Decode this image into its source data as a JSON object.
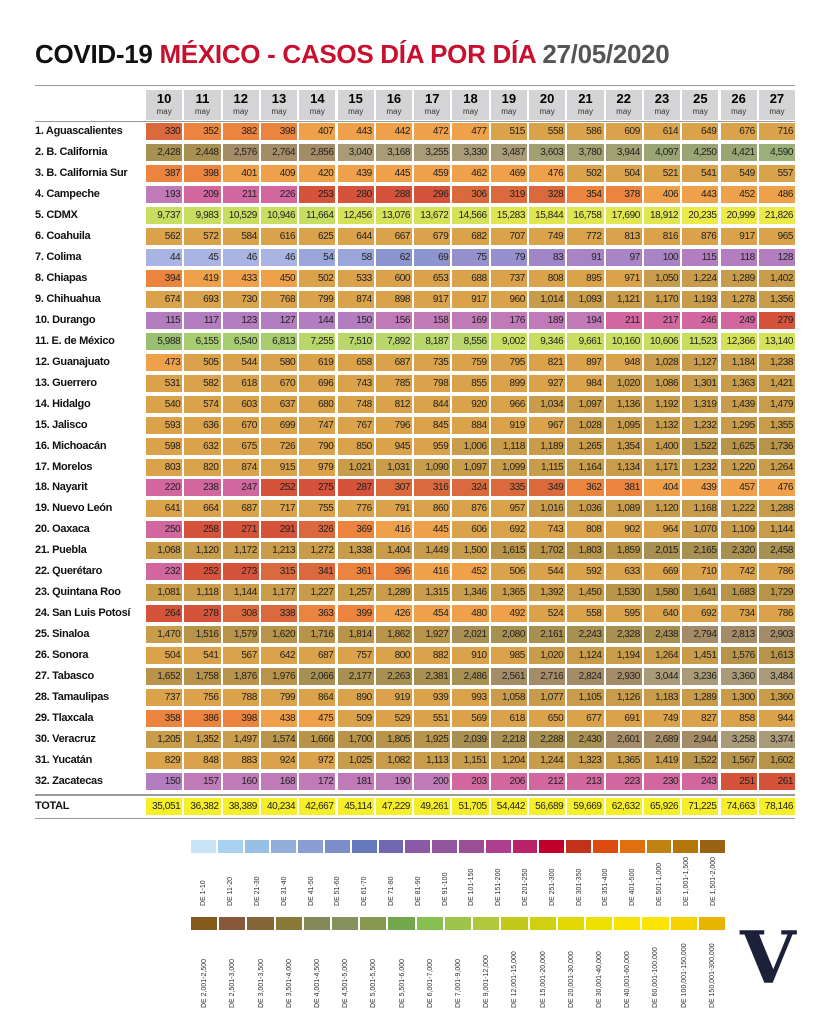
{
  "title": {
    "part1": "COVID-19 ",
    "part2": "MÉXICO - CASOS DÍA POR DÍA ",
    "part3": "27/05/2020",
    "colors": {
      "part1": "#111111",
      "part2": "#c8102e",
      "part3": "#555555"
    }
  },
  "chart_data": {
    "type": "heatmap",
    "columns": [
      {
        "day": "10",
        "month": "may"
      },
      {
        "day": "11",
        "month": "may"
      },
      {
        "day": "12",
        "month": "may"
      },
      {
        "day": "13",
        "month": "may"
      },
      {
        "day": "14",
        "month": "may"
      },
      {
        "day": "15",
        "month": "may"
      },
      {
        "day": "16",
        "month": "may"
      },
      {
        "day": "17",
        "month": "may"
      },
      {
        "day": "18",
        "month": "may"
      },
      {
        "day": "19",
        "month": "may"
      },
      {
        "day": "20",
        "month": "may"
      },
      {
        "day": "21",
        "month": "may"
      },
      {
        "day": "22",
        "month": "may"
      },
      {
        "day": "23",
        "month": "may"
      },
      {
        "day": "25",
        "month": "may"
      },
      {
        "day": "26",
        "month": "may"
      },
      {
        "day": "27",
        "month": "may"
      }
    ],
    "rows": [
      {
        "label": "1. Aguascalientes",
        "values": [
          "330",
          "352",
          "382",
          "398",
          "407",
          "443",
          "442",
          "472",
          "477",
          "515",
          "558",
          "586",
          "609",
          "614",
          "649",
          "676",
          "716"
        ]
      },
      {
        "label": "2. B. California",
        "values": [
          "2,428",
          "2,448",
          "2,576",
          "2,764",
          "2,856",
          "3,040",
          "3,168",
          "3,255",
          "3,330",
          "3,487",
          "3,603",
          "3,780",
          "3,944",
          "4,097",
          "4,250",
          "4,421",
          "4,590"
        ]
      },
      {
        "label": "3. B. California Sur",
        "values": [
          "387",
          "398",
          "401",
          "409",
          "420",
          "439",
          "445",
          "459",
          "462",
          "469",
          "476",
          "502",
          "504",
          "521",
          "541",
          "549",
          "557"
        ]
      },
      {
        "label": "4. Campeche",
        "values": [
          "193",
          "209",
          "211",
          "226",
          "253",
          "280",
          "288",
          "296",
          "306",
          "319",
          "328",
          "354",
          "378",
          "406",
          "443",
          "452",
          "486"
        ]
      },
      {
        "label": "5. CDMX",
        "values": [
          "9,737",
          "9,983",
          "10,529",
          "10,946",
          "11,664",
          "12,456",
          "13,076",
          "13,672",
          "14,566",
          "15,283",
          "15,844",
          "16,758",
          "17,690",
          "18,912",
          "20,235",
          "20,999",
          "21,826"
        ]
      },
      {
        "label": "6. Coahuila",
        "values": [
          "562",
          "572",
          "584",
          "616",
          "625",
          "644",
          "667",
          "679",
          "682",
          "707",
          "749",
          "772",
          "813",
          "816",
          "876",
          "917",
          "965"
        ]
      },
      {
        "label": "7. Colima",
        "values": [
          "44",
          "45",
          "46",
          "46",
          "54",
          "58",
          "62",
          "69",
          "75",
          "79",
          "83",
          "91",
          "97",
          "100",
          "115",
          "118",
          "128"
        ]
      },
      {
        "label": "8. Chiapas",
        "values": [
          "394",
          "419",
          "433",
          "450",
          "502",
          "533",
          "600",
          "653",
          "688",
          "737",
          "808",
          "895",
          "971",
          "1,050",
          "1,224",
          "1,289",
          "1,402"
        ]
      },
      {
        "label": "9. Chihuahua",
        "values": [
          "674",
          "693",
          "730",
          "768",
          "799",
          "874",
          "898",
          "917",
          "917",
          "960",
          "1,014",
          "1,093",
          "1,121",
          "1,170",
          "1,193",
          "1,278",
          "1,356"
        ]
      },
      {
        "label": "10. Durango",
        "values": [
          "115",
          "117",
          "123",
          "127",
          "144",
          "150",
          "156",
          "158",
          "169",
          "176",
          "189",
          "194",
          "211",
          "217",
          "246",
          "249",
          "279"
        ]
      },
      {
        "label": "11. E. de México",
        "values": [
          "5,988",
          "6,155",
          "6,540",
          "6,813",
          "7,255",
          "7,510",
          "7,892",
          "8,187",
          "8,556",
          "9,002",
          "9,346",
          "9,661",
          "10,160",
          "10,606",
          "11,523",
          "12,366",
          "13,140"
        ]
      },
      {
        "label": "12. Guanajuato",
        "values": [
          "473",
          "505",
          "544",
          "580",
          "619",
          "658",
          "687",
          "735",
          "759",
          "795",
          "821",
          "897",
          "948",
          "1,028",
          "1,127",
          "1,184",
          "1,238"
        ]
      },
      {
        "label": "13. Guerrero",
        "values": [
          "531",
          "582",
          "618",
          "670",
          "696",
          "743",
          "785",
          "798",
          "855",
          "899",
          "927",
          "984",
          "1,020",
          "1,086",
          "1,301",
          "1,363",
          "1,421"
        ]
      },
      {
        "label": "14. Hidalgo",
        "values": [
          "540",
          "574",
          "603",
          "637",
          "680",
          "748",
          "812",
          "844",
          "920",
          "966",
          "1,034",
          "1,097",
          "1,136",
          "1,192",
          "1,319",
          "1,439",
          "1,479"
        ]
      },
      {
        "label": "15. Jalisco",
        "values": [
          "593",
          "636",
          "670",
          "699",
          "747",
          "767",
          "796",
          "845",
          "884",
          "919",
          "967",
          "1,028",
          "1,095",
          "1,132",
          "1,232",
          "1,295",
          "1,355"
        ]
      },
      {
        "label": "16. Michoacán",
        "values": [
          "598",
          "632",
          "675",
          "726",
          "790",
          "850",
          "945",
          "959",
          "1,006",
          "1,118",
          "1,189",
          "1,265",
          "1,354",
          "1,400",
          "1,522",
          "1,625",
          "1,736"
        ]
      },
      {
        "label": "17. Morelos",
        "values": [
          "803",
          "820",
          "874",
          "915",
          "979",
          "1,021",
          "1,031",
          "1,090",
          "1,097",
          "1,099",
          "1,115",
          "1,164",
          "1,134",
          "1,171",
          "1,232",
          "1,220",
          "1,264"
        ]
      },
      {
        "label": "18. Nayarit",
        "values": [
          "220",
          "238",
          "247",
          "252",
          "275",
          "287",
          "307",
          "316",
          "324",
          "335",
          "349",
          "362",
          "381",
          "404",
          "439",
          "457",
          "476"
        ]
      },
      {
        "label": "19. Nuevo León",
        "values": [
          "641",
          "664",
          "687",
          "717",
          "755",
          "776",
          "791",
          "860",
          "876",
          "957",
          "1,016",
          "1,036",
          "1,089",
          "1,120",
          "1,168",
          "1,222",
          "1,288"
        ]
      },
      {
        "label": "20. Oaxaca",
        "values": [
          "250",
          "258",
          "271",
          "291",
          "326",
          "369",
          "416",
          "445",
          "606",
          "692",
          "743",
          "808",
          "902",
          "964",
          "1,070",
          "1,109",
          "1,144"
        ]
      },
      {
        "label": "21. Puebla",
        "values": [
          "1,068",
          "1,120",
          "1,172",
          "1,213",
          "1,272",
          "1,338",
          "1,404",
          "1,449",
          "1,500",
          "1,615",
          "1,702",
          "1,803",
          "1,859",
          "2,015",
          "2,165",
          "2,320",
          "2,458"
        ]
      },
      {
        "label": "22. Querétaro",
        "values": [
          "232",
          "252",
          "273",
          "315",
          "341",
          "361",
          "396",
          "416",
          "452",
          "506",
          "544",
          "592",
          "633",
          "669",
          "710",
          "742",
          "786"
        ]
      },
      {
        "label": "23. Quintana Roo",
        "values": [
          "1,081",
          "1,118",
          "1,144",
          "1,177",
          "1,227",
          "1,257",
          "1,289",
          "1,315",
          "1,346",
          "1,365",
          "1,392",
          "1,450",
          "1,530",
          "1,580",
          "1,641",
          "1,683",
          "1,729"
        ]
      },
      {
        "label": "24. San Luis Potosí",
        "values": [
          "264",
          "278",
          "308",
          "338",
          "363",
          "399",
          "426",
          "454",
          "480",
          "492",
          "524",
          "558",
          "595",
          "640",
          "692",
          "734",
          "786"
        ]
      },
      {
        "label": "25. Sinaloa",
        "values": [
          "1,470",
          "1,516",
          "1,579",
          "1,620",
          "1,716",
          "1,814",
          "1,862",
          "1,927",
          "2,021",
          "2,080",
          "2,161",
          "2,243",
          "2,328",
          "2,438",
          "2,794",
          "2,813",
          "2,903"
        ]
      },
      {
        "label": "26. Sonora",
        "values": [
          "504",
          "541",
          "567",
          "642",
          "687",
          "757",
          "800",
          "882",
          "910",
          "985",
          "1,020",
          "1,124",
          "1,194",
          "1,264",
          "1,451",
          "1,576",
          "1,613"
        ]
      },
      {
        "label": "27. Tabasco",
        "values": [
          "1,652",
          "1,758",
          "1,876",
          "1,976",
          "2,066",
          "2,177",
          "2,263",
          "2,381",
          "2,486",
          "2,561",
          "2,716",
          "2,824",
          "2,930",
          "3,044",
          "3,236",
          "3,360",
          "3,484"
        ]
      },
      {
        "label": "28. Tamaulipas",
        "values": [
          "737",
          "756",
          "788",
          "799",
          "864",
          "890",
          "919",
          "939",
          "993",
          "1,058",
          "1,077",
          "1,105",
          "1,126",
          "1,183",
          "1,289",
          "1,300",
          "1,360"
        ]
      },
      {
        "label": "29. Tlaxcala",
        "values": [
          "358",
          "386",
          "398",
          "438",
          "475",
          "509",
          "529",
          "551",
          "569",
          "618",
          "650",
          "677",
          "691",
          "749",
          "827",
          "858",
          "944"
        ]
      },
      {
        "label": "30. Veracruz",
        "values": [
          "1,205",
          "1,352",
          "1,497",
          "1,574",
          "1,666",
          "1,700",
          "1,805",
          "1,925",
          "2,039",
          "2,218",
          "2,288",
          "2,430",
          "2,601",
          "2,689",
          "2,944",
          "3,258",
          "3,374"
        ]
      },
      {
        "label": "31. Yucatán",
        "values": [
          "829",
          "848",
          "883",
          "924",
          "972",
          "1,025",
          "1,082",
          "1,113",
          "1,151",
          "1,204",
          "1,244",
          "1,323",
          "1,365",
          "1,419",
          "1,522",
          "1,567",
          "1,602"
        ]
      },
      {
        "label": "32. Zacatecas",
        "values": [
          "150",
          "157",
          "160",
          "168",
          "172",
          "181",
          "190",
          "200",
          "203",
          "206",
          "212",
          "213",
          "223",
          "230",
          "243",
          "251",
          "261"
        ]
      }
    ],
    "total": {
      "label": "TOTAL",
      "values": [
        "35,051",
        "36,382",
        "38,389",
        "40,234",
        "42,667",
        "45,114",
        "47,229",
        "49,261",
        "51,705",
        "54,442",
        "56,689",
        "59,669",
        "62,632",
        "65,926",
        "71,225",
        "74,663",
        "78,146"
      ],
      "color": "#f7ee2a"
    },
    "cell_color_bins": [
      {
        "max": 50,
        "color": "#aab4e2"
      },
      {
        "max": 60,
        "color": "#9ca5d9"
      },
      {
        "max": 70,
        "color": "#8d95cf"
      },
      {
        "max": 80,
        "color": "#9690cc"
      },
      {
        "max": 90,
        "color": "#a086c6"
      },
      {
        "max": 100,
        "color": "#a884c4"
      },
      {
        "max": 150,
        "color": "#b27ec0"
      },
      {
        "max": 200,
        "color": "#c07ab8"
      },
      {
        "max": 250,
        "color": "#d2679f"
      },
      {
        "max": 300,
        "color": "#d5533a"
      },
      {
        "max": 350,
        "color": "#da6a3d"
      },
      {
        "max": 400,
        "color": "#ea843e"
      },
      {
        "max": 500,
        "color": "#eea04a"
      },
      {
        "max": 1000,
        "color": "#d9a24b"
      },
      {
        "max": 1500,
        "color": "#c89c4a"
      },
      {
        "max": 2000,
        "color": "#b8944a"
      },
      {
        "max": 2500,
        "color": "#a89052"
      },
      {
        "max": 3000,
        "color": "#a58c68"
      },
      {
        "max": 3500,
        "color": "#a99a78"
      },
      {
        "max": 4000,
        "color": "#a0a072"
      },
      {
        "max": 4500,
        "color": "#9aa474"
      },
      {
        "max": 5000,
        "color": "#9cae7a"
      },
      {
        "max": 5500,
        "color": "#9ab872"
      },
      {
        "max": 6000,
        "color": "#98c070"
      },
      {
        "max": 7000,
        "color": "#a8cc70"
      },
      {
        "max": 9000,
        "color": "#b8d66a"
      },
      {
        "max": 12000,
        "color": "#c8de60"
      },
      {
        "max": 15000,
        "color": "#d4e258"
      },
      {
        "max": 20000,
        "color": "#e0e650"
      },
      {
        "max": 30000,
        "color": "#ecea48"
      },
      {
        "max": 300000,
        "color": "#f5ee2e"
      }
    ]
  },
  "legend": {
    "row1": [
      {
        "label": "DE 1-10",
        "color": "#c9e4f6"
      },
      {
        "label": "DE 11-20",
        "color": "#a9d2f0"
      },
      {
        "label": "DE 21-30",
        "color": "#98bfe6"
      },
      {
        "label": "DE 31-40",
        "color": "#94aedb"
      },
      {
        "label": "DE 41-50",
        "color": "#8a9ed3"
      },
      {
        "label": "DE 51-60",
        "color": "#7b8cc9"
      },
      {
        "label": "DE 61-70",
        "color": "#6779bd"
      },
      {
        "label": "DE 71-80",
        "color": "#7268b2"
      },
      {
        "label": "DE 81-90",
        "color": "#8a5aa6"
      },
      {
        "label": "DE 91-100",
        "color": "#90559d"
      },
      {
        "label": "DE 101-150",
        "color": "#9b4f96"
      },
      {
        "label": "DE 151-200",
        "color": "#ad3f8e"
      },
      {
        "label": "DE 201-250",
        "color": "#bb2368"
      },
      {
        "label": "DE 251-300",
        "color": "#c0002a"
      },
      {
        "label": "DE 301-350",
        "color": "#c2321b"
      },
      {
        "label": "DE 351-400",
        "color": "#dd4a12"
      },
      {
        "label": "DE 401-500",
        "color": "#e0700e"
      },
      {
        "label": "DE 501-1,000",
        "color": "#c0830f"
      },
      {
        "label": "DE 1,001-1,500",
        "color": "#b5760c"
      },
      {
        "label": "DE 1,501-2,000",
        "color": "#9a6213"
      }
    ],
    "row2": [
      {
        "label": "DE 2,001-2,500",
        "color": "#855a1c"
      },
      {
        "label": "DE 2,501-3,000",
        "color": "#87583a"
      },
      {
        "label": "DE 3,001-3,500",
        "color": "#866638"
      },
      {
        "label": "DE 3,501-4,000",
        "color": "#8a7a3a"
      },
      {
        "label": "DE 4,001-4,500",
        "color": "#84895a"
      },
      {
        "label": "DE 4,501-5,000",
        "color": "#86925e"
      },
      {
        "label": "DE 5,001-5,500",
        "color": "#889a52"
      },
      {
        "label": "DE 5,501-6,000",
        "color": "#72a74e"
      },
      {
        "label": "DE 6,001-7,000",
        "color": "#88bf52"
      },
      {
        "label": "DE 7,001-9,000",
        "color": "#9fc44a"
      },
      {
        "label": "DE 9,001-12,000",
        "color": "#b2c83c"
      },
      {
        "label": "DE 12,001-15,000",
        "color": "#c2c81c"
      },
      {
        "label": "DE 15,001-20,000",
        "color": "#d0d010"
      },
      {
        "label": "DE 20,001-30,000",
        "color": "#e0d800"
      },
      {
        "label": "DE 30,001-40,000",
        "color": "#eee000"
      },
      {
        "label": "DE 40,001-60,000",
        "color": "#f8e400"
      },
      {
        "label": "DE 60,001-100,000",
        "color": "#fae600"
      },
      {
        "label": "DE 100,001-150,000",
        "color": "#f6d200"
      },
      {
        "label": "DE 150,001-300,000",
        "color": "#e8b400"
      }
    ]
  },
  "logo": {
    "text": "V",
    "color": "#1c2038"
  }
}
